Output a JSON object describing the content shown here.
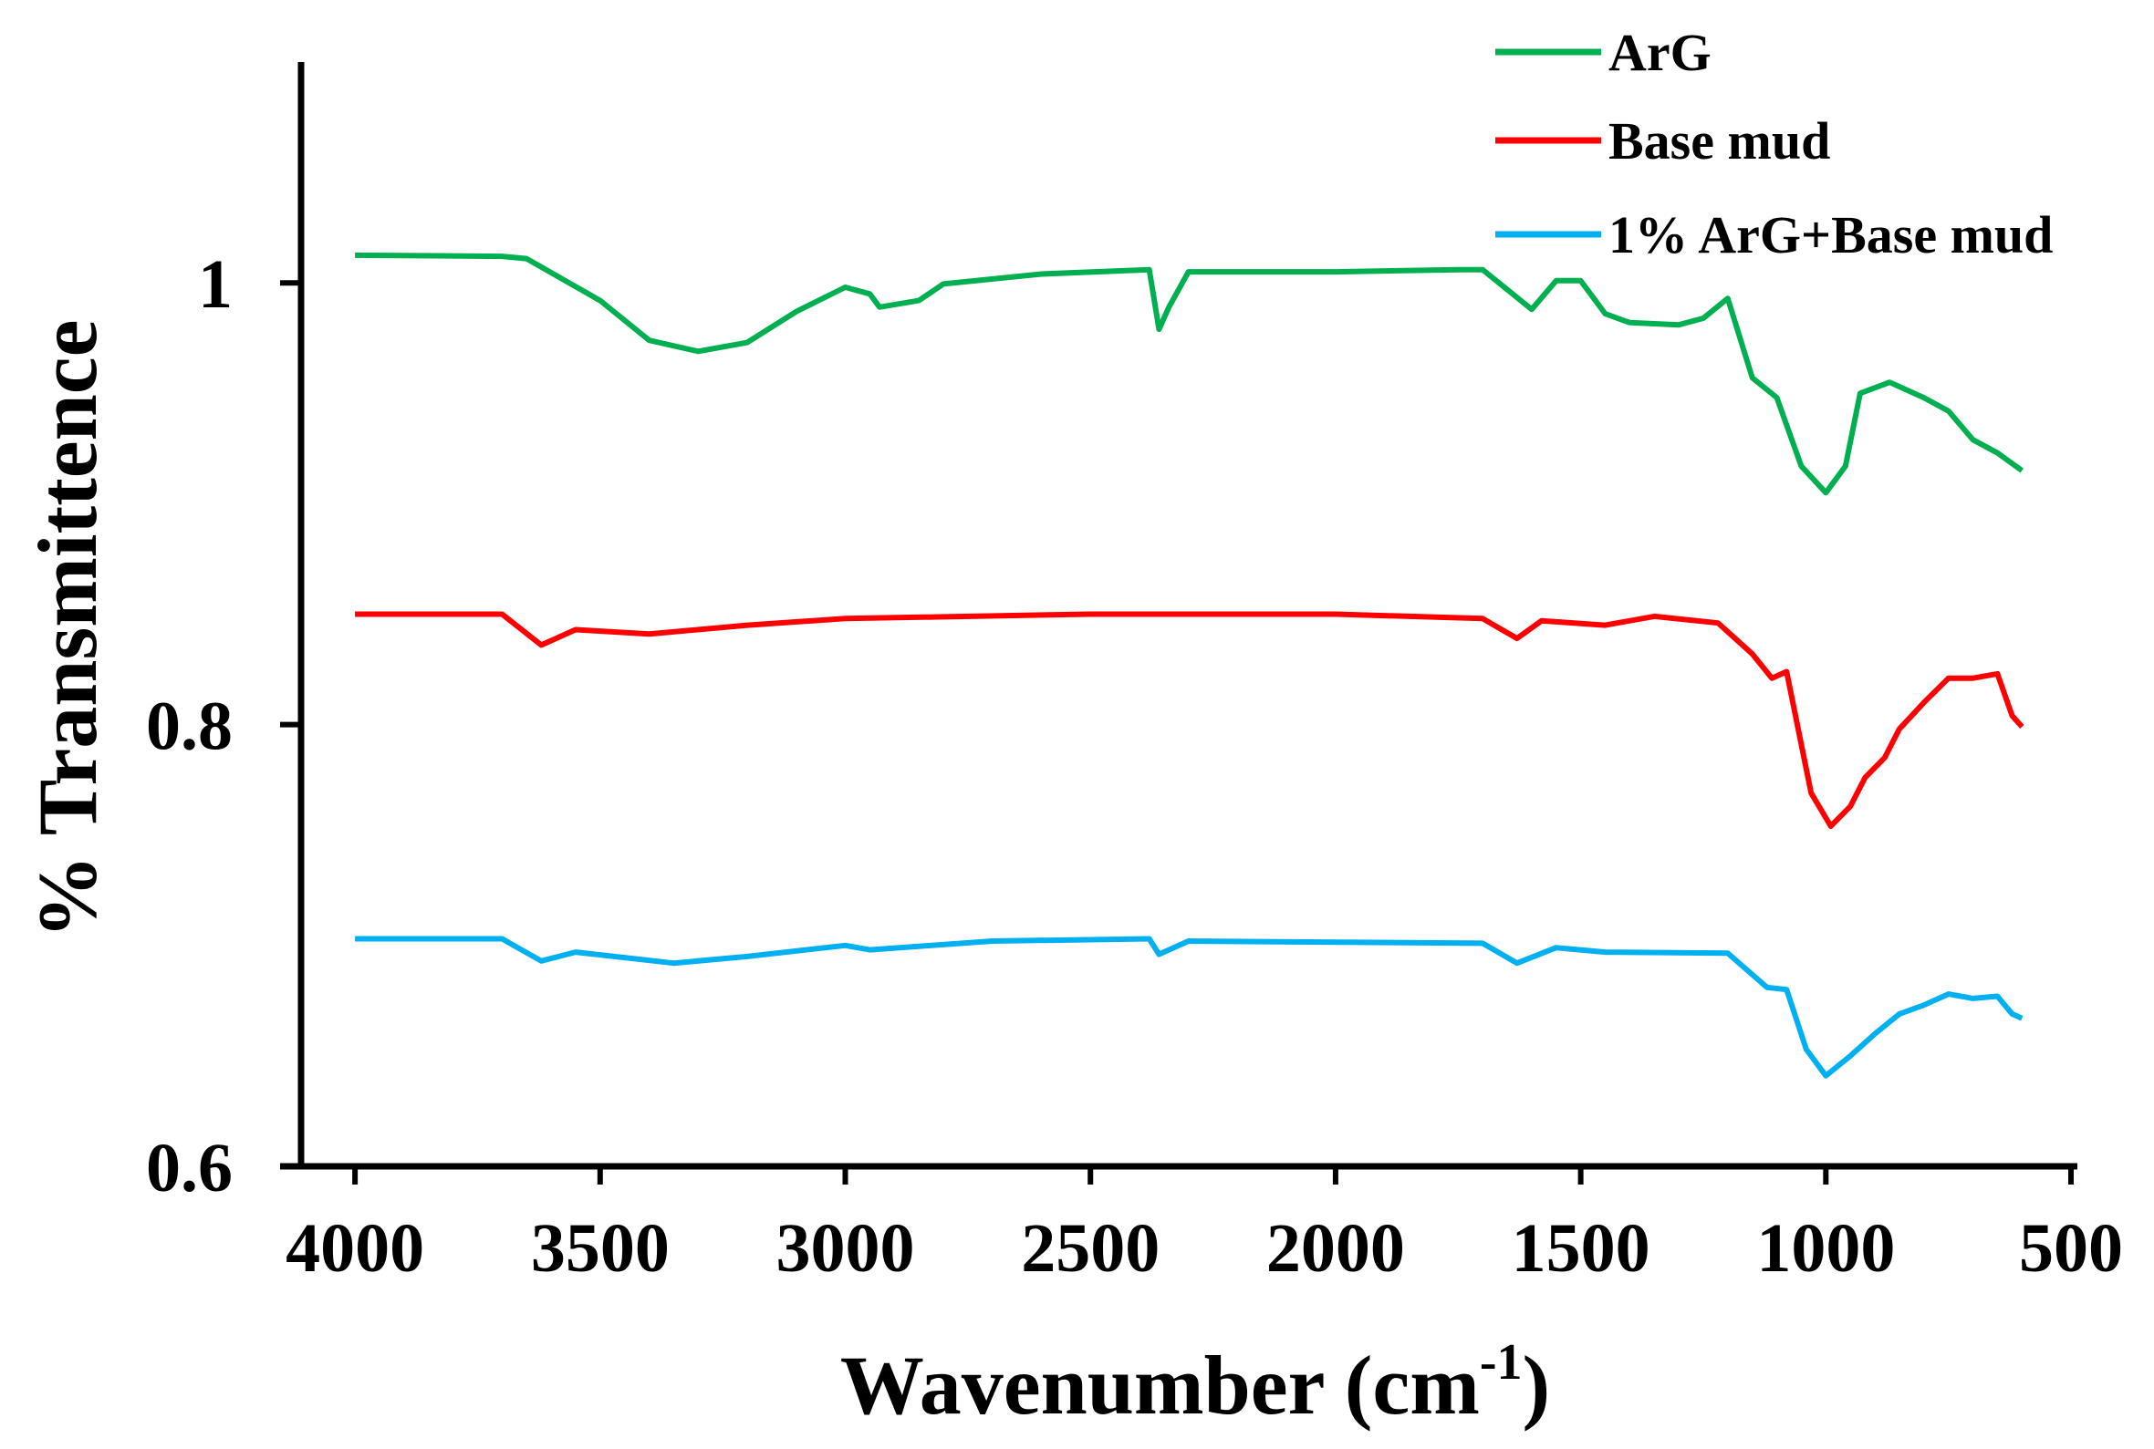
{
  "chart_data": {
    "type": "line",
    "title": "",
    "xlabel": "Wavenumber (cm",
    "xlabel_sup": "-1",
    "xlabel_close": ")",
    "ylabel": "% Transmittence",
    "xlim": [
      4110,
      487
    ],
    "ylim": [
      0.6,
      1.1
    ],
    "xticks": [
      4000,
      3500,
      3000,
      2500,
      2000,
      1500,
      1000,
      500
    ],
    "yticks": [
      0.6,
      0.8,
      1
    ],
    "ytick_labels": [
      "0.6",
      "0.8",
      "1"
    ],
    "grid": false,
    "legend_position": "top-right",
    "series": [
      {
        "name": "ArG",
        "color": "#00b050",
        "x": [
          4000,
          3700,
          3650,
          3500,
          3400,
          3300,
          3200,
          3100,
          3000,
          2950,
          2930,
          2850,
          2800,
          2600,
          2380,
          2360,
          2340,
          2300,
          2000,
          1750,
          1700,
          1650,
          1600,
          1550,
          1500,
          1450,
          1400,
          1300,
          1250,
          1200,
          1150,
          1100,
          1050,
          1000,
          960,
          930,
          870,
          800,
          750,
          700,
          650,
          600
        ],
        "y": [
          1.0125,
          1.012,
          1.011,
          0.992,
          0.974,
          0.969,
          0.973,
          0.987,
          0.998,
          0.995,
          0.989,
          0.992,
          0.9995,
          1.004,
          1.006,
          0.979,
          0.989,
          1.005,
          1.005,
          1.006,
          1.006,
          0.997,
          0.988,
          1.001,
          1.001,
          0.986,
          0.982,
          0.981,
          0.984,
          0.993,
          0.957,
          0.948,
          0.917,
          0.905,
          0.917,
          0.95,
          0.955,
          0.948,
          0.942,
          0.929,
          0.923,
          0.915
        ]
      },
      {
        "name": "Base mud",
        "color": "#ff0000",
        "x": [
          4000,
          3700,
          3620,
          3550,
          3400,
          3200,
          3000,
          2500,
          2000,
          1700,
          1630,
          1580,
          1450,
          1350,
          1220,
          1150,
          1110,
          1080,
          1050,
          1030,
          990,
          950,
          920,
          880,
          850,
          800,
          750,
          700,
          650,
          620,
          600
        ],
        "y": [
          0.85,
          0.85,
          0.836,
          0.843,
          0.841,
          0.845,
          0.848,
          0.85,
          0.85,
          0.848,
          0.839,
          0.847,
          0.845,
          0.849,
          0.846,
          0.832,
          0.821,
          0.824,
          0.791,
          0.769,
          0.754,
          0.763,
          0.776,
          0.785,
          0.798,
          0.81,
          0.821,
          0.821,
          0.823,
          0.804,
          0.799
        ]
      },
      {
        "name": "1% ArG+Base mud",
        "color": "#00b0f0",
        "x": [
          4000,
          3700,
          3620,
          3550,
          3350,
          3200,
          3000,
          2950,
          2700,
          2380,
          2360,
          2300,
          1700,
          1630,
          1550,
          1450,
          1200,
          1120,
          1080,
          1040,
          1000,
          950,
          900,
          850,
          800,
          750,
          700,
          650,
          620,
          600
        ],
        "y": [
          0.703,
          0.703,
          0.693,
          0.697,
          0.692,
          0.695,
          0.7,
          0.698,
          0.702,
          0.703,
          0.696,
          0.702,
          0.701,
          0.692,
          0.699,
          0.697,
          0.6965,
          0.681,
          0.68,
          0.653,
          0.641,
          0.65,
          0.66,
          0.669,
          0.673,
          0.678,
          0.676,
          0.677,
          0.669,
          0.667
        ]
      }
    ]
  }
}
